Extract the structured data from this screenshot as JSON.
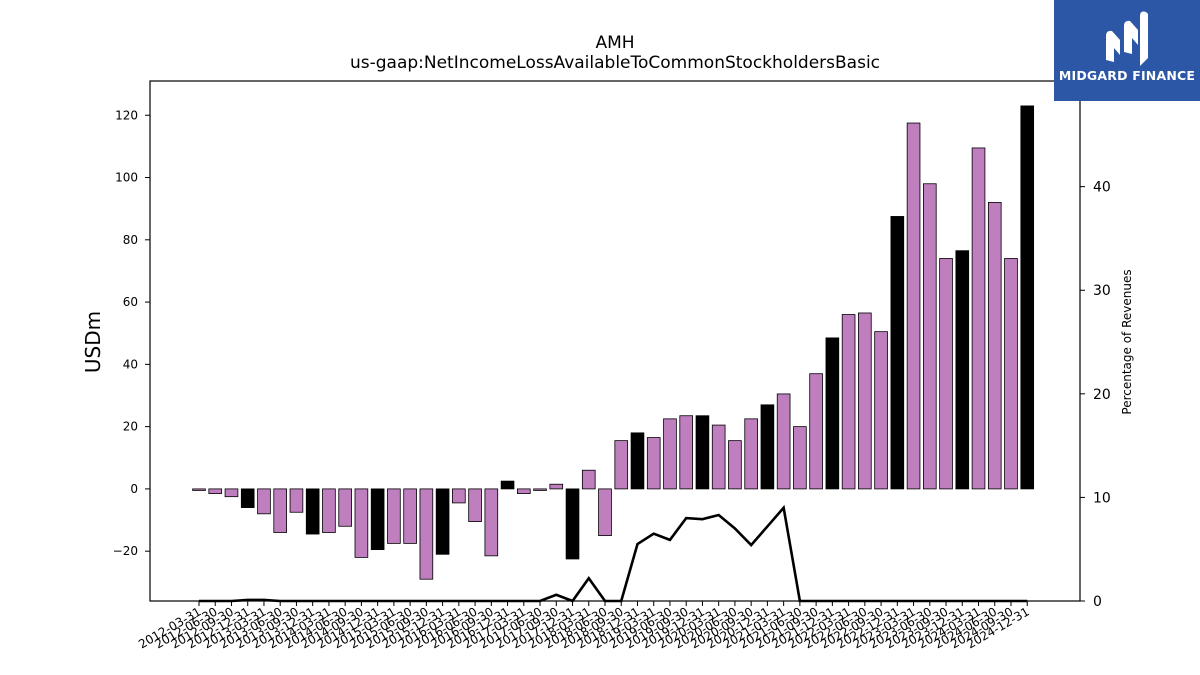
{
  "header": {
    "title": "AMH",
    "subtitle": "us-gaap:NetIncomeLossAvailableToCommonStockholdersBasic"
  },
  "logo": {
    "text": "MIDGARD FINANCE",
    "icon": "midgard-logo-icon"
  },
  "colors": {
    "bar_quarter": "#bf7fbf",
    "bar_year": "#000000",
    "line": "#000000"
  },
  "chart_data": {
    "type": "bar",
    "ylabel": "USDm",
    "y2label": "Percentage of Revenues",
    "ylim": [
      -36,
      131
    ],
    "y2lim": [
      0,
      50.2
    ],
    "yticks": [
      -20,
      0,
      20,
      40,
      60,
      80,
      100,
      120
    ],
    "y2ticks": [
      0,
      10,
      20,
      30,
      40,
      50
    ],
    "grid": false,
    "categories": [
      "2012-03-31",
      "2012-06-30",
      "2012-09-30",
      "2012-12-31",
      "2013-03-31",
      "2013-06-30",
      "2013-09-30",
      "2013-12-31",
      "2014-03-31",
      "2014-06-30",
      "2014-09-30",
      "2014-12-31",
      "2015-03-31",
      "2015-06-30",
      "2015-09-30",
      "2015-12-31",
      "2016-03-31",
      "2016-06-30",
      "2016-09-30",
      "2016-12-31",
      "2017-03-31",
      "2017-06-30",
      "2017-09-30",
      "2017-12-31",
      "2018-03-31",
      "2018-06-30",
      "2018-09-30",
      "2018-12-31",
      "2019-03-31",
      "2019-06-30",
      "2019-09-30",
      "2019-12-31",
      "2020-03-31",
      "2020-06-30",
      "2020-09-30",
      "2020-12-31",
      "2021-03-31",
      "2021-06-30",
      "2021-09-30",
      "2021-12-31",
      "2022-03-31",
      "2022-06-30",
      "2022-09-30",
      "2022-12-31",
      "2023-03-31",
      "2023-06-30",
      "2023-09-30",
      "2023-12-31",
      "2024-03-31",
      "2024-06-30",
      "2024-09-30",
      "2024-12-31"
    ],
    "series": [
      {
        "kind": "bar",
        "values": [
          -0.5,
          -1.5,
          -2.5,
          -6,
          -8,
          -14,
          -7.5,
          -14.5,
          -14,
          -12,
          -22,
          -19.5,
          -17.5,
          -17.5,
          -29,
          -21,
          -4.5,
          -10.5,
          -21.5,
          2.5,
          -1.5,
          -0.5,
          1.5,
          -22.5,
          6,
          -15,
          15.5,
          18,
          16.5,
          22.5,
          23.5,
          23.5,
          20.5,
          15.5,
          22.5,
          27,
          30.5,
          20,
          37,
          48.5,
          56,
          56.5,
          50.5,
          87.5,
          117.5,
          98,
          74,
          76.5,
          109.5,
          92,
          74,
          123
        ],
        "annual": [
          false,
          false,
          false,
          true,
          false,
          false,
          false,
          true,
          false,
          false,
          false,
          true,
          false,
          false,
          false,
          true,
          false,
          false,
          false,
          true,
          false,
          false,
          false,
          true,
          false,
          false,
          false,
          true,
          false,
          false,
          false,
          true,
          false,
          false,
          false,
          true,
          false,
          false,
          false,
          true,
          false,
          false,
          false,
          true,
          false,
          false,
          false,
          true,
          false,
          false,
          false,
          true
        ]
      },
      {
        "kind": "line",
        "axis": "right",
        "values": [
          0,
          0,
          0,
          0.1,
          0.1,
          0,
          0,
          0,
          0,
          0,
          0,
          0,
          0,
          0,
          0,
          0,
          0,
          0,
          0,
          0,
          0,
          0,
          0.6,
          0,
          2.2,
          0,
          0,
          5.5,
          6.5,
          5.9,
          8,
          7.9,
          8.3,
          7,
          5.4,
          7.2,
          9,
          0,
          0,
          0,
          0,
          0,
          0,
          0,
          0,
          0,
          0,
          0,
          0,
          0,
          0,
          0
        ]
      }
    ]
  }
}
